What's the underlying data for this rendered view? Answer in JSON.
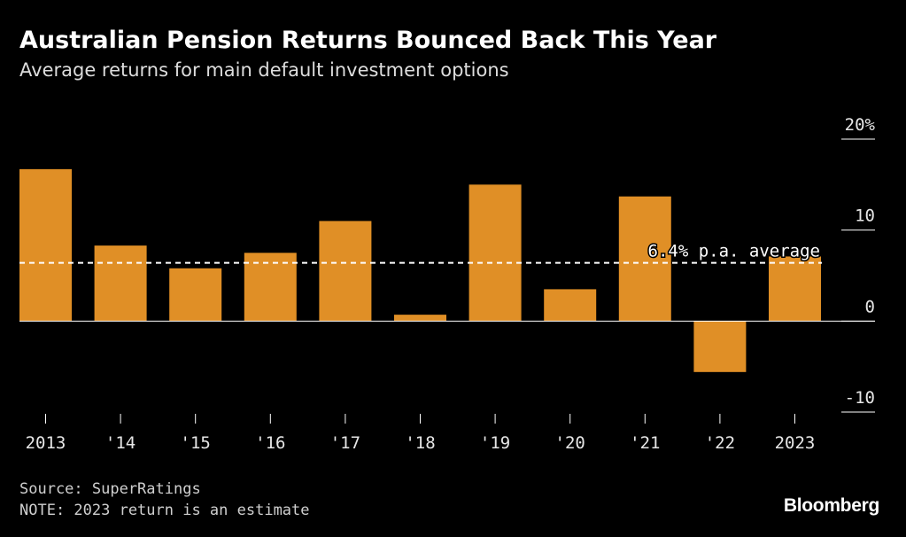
{
  "header": {
    "title": "Australian Pension Returns Bounced Back This Year",
    "subtitle": "Average returns for main default investment options"
  },
  "footer": {
    "source": "Source: SuperRatings",
    "note": "NOTE: 2023 return is an estimate",
    "brand": "Bloomberg"
  },
  "colors": {
    "bar": "#e08f26",
    "background": "#000000",
    "axis": "#ffffff"
  },
  "chart_data": {
    "type": "bar",
    "title": "Australian Pension Returns Bounced Back This Year",
    "subtitle": "Average returns for main default investment options",
    "xlabel": "",
    "ylabel": "",
    "categories": [
      "2013",
      "'14",
      "'15",
      "'16",
      "'17",
      "'18",
      "'19",
      "'20",
      "'21",
      "'22",
      "2023"
    ],
    "values": [
      16.7,
      8.3,
      5.8,
      7.5,
      11.0,
      0.7,
      15.0,
      3.5,
      13.7,
      -5.6,
      7.1
    ],
    "ylim": [
      -10,
      20
    ],
    "yticks": [
      -10,
      0,
      10,
      20
    ],
    "ytick_labels": [
      "-10",
      "0",
      "10",
      "20%"
    ],
    "average": {
      "value": 6.4,
      "label": "6.4% p.a. average"
    },
    "legend": "none",
    "grid": false
  }
}
